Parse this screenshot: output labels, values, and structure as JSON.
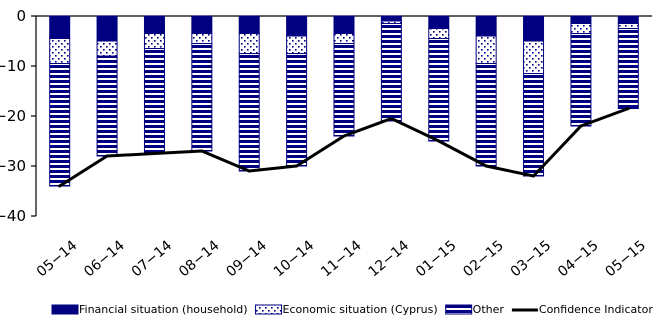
{
  "chart_data": {
    "type": "bar",
    "stacked": true,
    "categories": [
      "05-14",
      "06-14",
      "07-14",
      "08-14",
      "09-14",
      "10-14",
      "11-14",
      "12-14",
      "01-15",
      "02-15",
      "03-15",
      "04-15",
      "05-15"
    ],
    "series": [
      {
        "name": "Financial situation (household)",
        "values": [
          -4.5,
          -5.0,
          -3.5,
          -3.5,
          -3.5,
          -4.0,
          -3.5,
          -1.0,
          -2.5,
          -4.0,
          -5.0,
          -1.5,
          -1.5
        ]
      },
      {
        "name": "Economic situation (Cyprus)",
        "values": [
          -5.0,
          -3.0,
          -3.0,
          -2.0,
          -4.0,
          -3.5,
          -2.0,
          -0.5,
          -2.0,
          -5.5,
          -6.5,
          -2.0,
          -1.0
        ]
      },
      {
        "name": "Other",
        "values": [
          -24.5,
          -20.0,
          -21.0,
          -21.5,
          -23.5,
          -22.5,
          -18.5,
          -19.5,
          -20.5,
          -20.5,
          -20.5,
          -18.5,
          -16.0
        ]
      },
      {
        "name": "Confidence Indicator",
        "type": "line",
        "values": [
          -34,
          -28,
          -27.5,
          -27,
          -31,
          -30,
          -24,
          -20.5,
          -25,
          -30,
          -32,
          -22,
          -18.5
        ]
      }
    ],
    "ylim": [
      -40,
      0
    ],
    "yticks": [
      0,
      -10,
      -20,
      -30,
      -40
    ],
    "legend_position": "bottom",
    "colors": {
      "financial": "#000080",
      "economic_dots": "#000080",
      "other_stripe": "#000080",
      "line": "#000000"
    }
  }
}
